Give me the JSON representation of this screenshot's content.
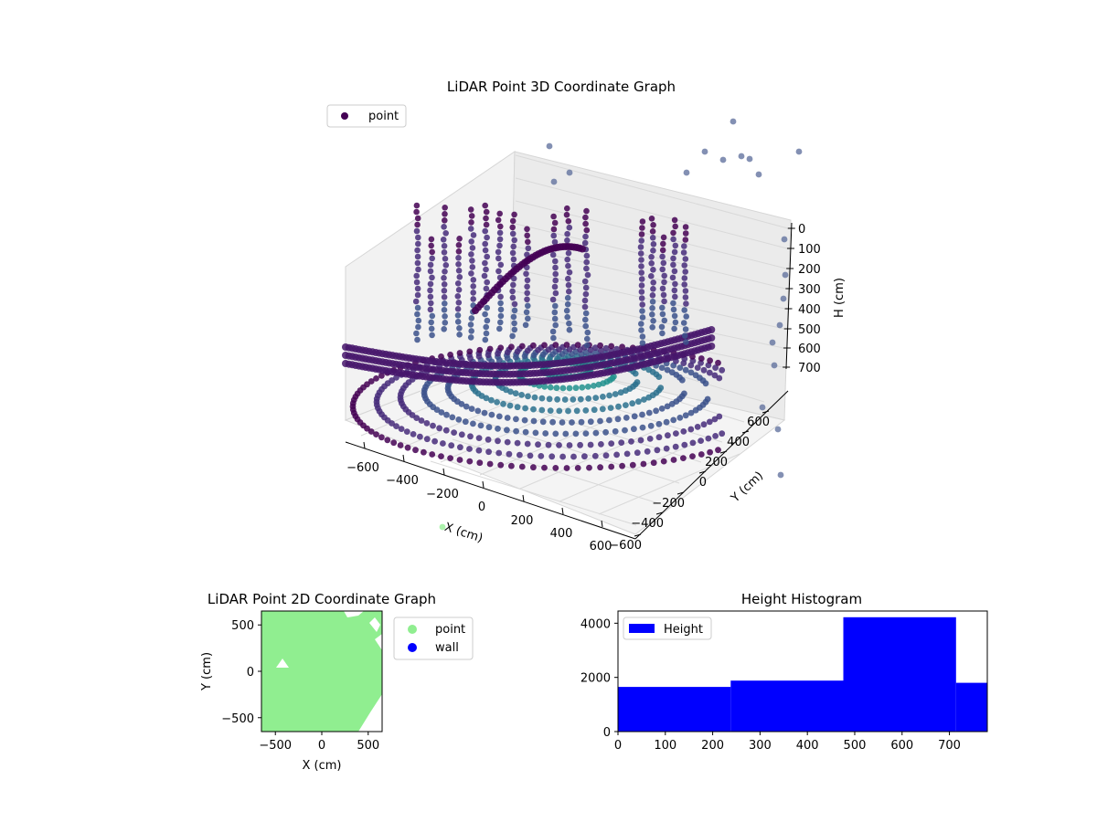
{
  "chart_data": [
    {
      "type": "scatter",
      "projection": "3d",
      "title": "LiDAR Point 3D Coordinate Graph",
      "xlabel": "X (cm)",
      "ylabel": "Y (cm)",
      "zlabel": "H (cm)",
      "xticks": [
        "−600",
        "−400",
        "−200",
        "0",
        "200",
        "400",
        "600"
      ],
      "yticks": [
        "−600",
        "−400",
        "−200",
        "0",
        "200",
        "400",
        "600"
      ],
      "zticks": [
        "0",
        "100",
        "200",
        "300",
        "400",
        "500",
        "600",
        "700"
      ],
      "xlim": [
        -650,
        650
      ],
      "ylim": [
        -650,
        650
      ],
      "zlim": [
        750,
        0
      ],
      "zaxis_inverted": true,
      "grid": true,
      "legend": {
        "placement": "upper-left",
        "entries": [
          {
            "label": "point",
            "color": "#440154"
          }
        ]
      },
      "colormap": "viridis (by distance)"
    },
    {
      "type": "scatter",
      "title": "LiDAR Point 2D Coordinate Graph",
      "xlabel": "X (cm)",
      "ylabel": "Y (cm)",
      "xticks": [
        "−500",
        "0",
        "500"
      ],
      "yticks": [
        "500",
        "0",
        "−500"
      ],
      "xlim": [
        -650,
        650
      ],
      "ylim": [
        -650,
        650
      ],
      "legend": {
        "placement": "outside-right",
        "entries": [
          {
            "label": "point",
            "color": "#90ee90"
          },
          {
            "label": "wall",
            "color": "#0000ff"
          }
        ]
      }
    },
    {
      "type": "bar",
      "subtype": "histogram",
      "title": "Height Histogram",
      "xticks": [
        "0",
        "100",
        "200",
        "300",
        "400",
        "500",
        "600",
        "700"
      ],
      "yticks": [
        "0",
        "2000",
        "4000"
      ],
      "xlim": [
        0,
        780
      ],
      "ylim": [
        0,
        4450
      ],
      "bins": [
        {
          "x0": 0,
          "x1": 238,
          "value": 1650
        },
        {
          "x0": 238,
          "x1": 476,
          "value": 1880
        },
        {
          "x0": 476,
          "x1": 714,
          "value": 4220
        },
        {
          "x0": 714,
          "x1": 780,
          "value": 1800
        }
      ],
      "color": "#0000ff",
      "legend": {
        "placement": "upper-left",
        "entries": [
          {
            "label": "Height",
            "color": "#0000ff"
          }
        ]
      }
    }
  ]
}
